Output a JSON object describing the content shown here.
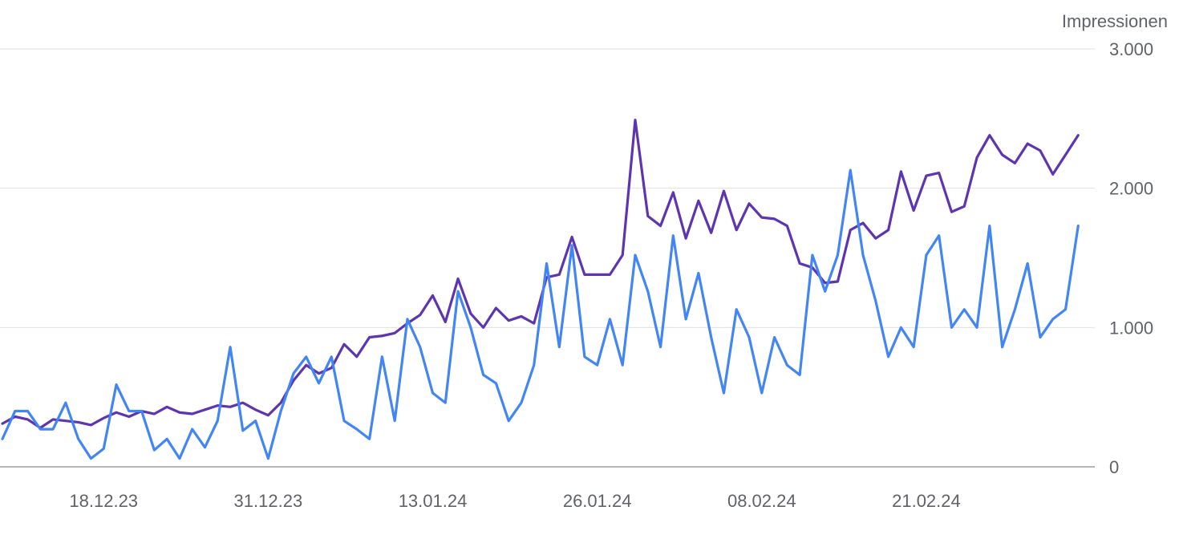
{
  "chart_data": {
    "type": "line",
    "ylabel": "Impressionen",
    "ylim": [
      0,
      3000
    ],
    "y_ticks": [
      "0",
      "1.000",
      "2.000",
      "3.000"
    ],
    "y_tick_values": [
      0,
      1000,
      2000,
      3000
    ],
    "x_start": "2023-12-05",
    "x_ticks": [
      "18.12.23",
      "31.12.23",
      "13.01.24",
      "26.01.24",
      "08.02.24",
      "21.02.24"
    ],
    "x_tick_indices": [
      8,
      21,
      34,
      47,
      60,
      73
    ],
    "grid": true,
    "colors": {
      "series_1": "#5e35b1",
      "series_2": "#4285f4",
      "grid": "#e0e0e0",
      "baseline": "#9e9e9e"
    },
    "series": [
      {
        "values": [
          310,
          360,
          340,
          280,
          340,
          330,
          320,
          300,
          350,
          390,
          360,
          400,
          380,
          430,
          390,
          380,
          410,
          440,
          430,
          460,
          410,
          370,
          460,
          620,
          730,
          670,
          710,
          880,
          790,
          930,
          940,
          960,
          1030,
          1090,
          1230,
          1040,
          1350,
          1100,
          1000,
          1140,
          1050,
          1080,
          1030,
          1360,
          1380,
          1650,
          1380,
          1380,
          1380,
          1520,
          2490,
          1800,
          1730,
          1970,
          1640,
          1910,
          1680,
          1980,
          1700,
          1890,
          1790,
          1780,
          1730,
          1460,
          1430,
          1320,
          1330,
          1700,
          1750,
          1640,
          1700,
          2120,
          1840,
          2090,
          2110,
          1830,
          1870,
          2220,
          2380,
          2240,
          2180,
          2320,
          2270,
          2100,
          2240,
          2380
        ]
      },
      {
        "values": [
          200,
          400,
          400,
          270,
          270,
          460,
          200,
          60,
          130,
          590,
          400,
          400,
          120,
          200,
          60,
          270,
          140,
          330,
          860,
          260,
          330,
          60,
          400,
          670,
          790,
          600,
          790,
          330,
          270,
          200,
          790,
          330,
          1060,
          860,
          530,
          460,
          1260,
          1000,
          660,
          600,
          330,
          460,
          730,
          1460,
          860,
          1590,
          790,
          730,
          1060,
          730,
          1520,
          1260,
          860,
          1660,
          1060,
          1390,
          930,
          530,
          1130,
          930,
          530,
          930,
          730,
          660,
          1520,
          1260,
          1520,
          2130,
          1520,
          1190,
          790,
          1000,
          860,
          1520,
          1660,
          1000,
          1130,
          1000,
          1730,
          860,
          1130,
          1460,
          930,
          1060,
          1130,
          1730
        ]
      }
    ]
  }
}
